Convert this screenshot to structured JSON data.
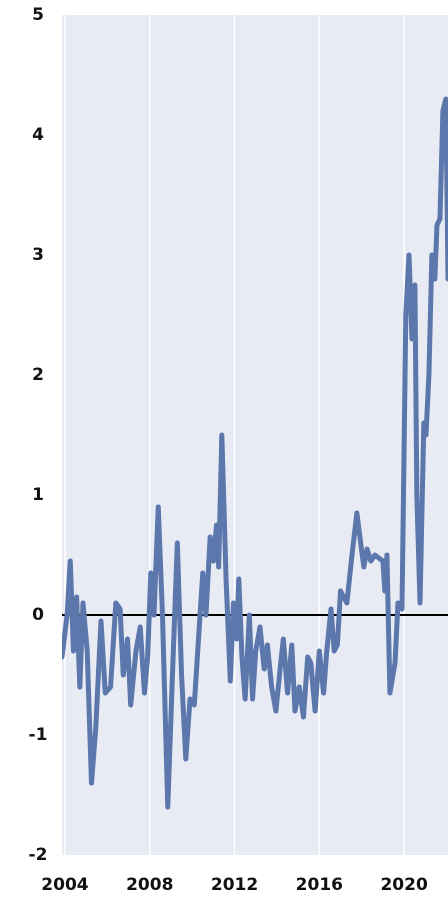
{
  "chart_data": {
    "type": "line",
    "x": [
      2003.86,
      2004.1,
      2004.25,
      2004.4,
      2004.55,
      2004.7,
      2004.85,
      2005.05,
      2005.25,
      2005.45,
      2005.7,
      2005.9,
      2006.15,
      2006.4,
      2006.6,
      2006.75,
      2006.95,
      2007.1,
      2007.35,
      2007.55,
      2007.75,
      2007.9,
      2008.05,
      2008.2,
      2008.4,
      2008.6,
      2008.85,
      2009.05,
      2009.3,
      2009.5,
      2009.7,
      2009.9,
      2010.1,
      2010.3,
      2010.5,
      2010.65,
      2010.85,
      2011.0,
      2011.15,
      2011.25,
      2011.4,
      2011.6,
      2011.8,
      2011.95,
      2012.1,
      2012.2,
      2012.35,
      2012.5,
      2012.7,
      2012.85,
      2013.0,
      2013.2,
      2013.4,
      2013.55,
      2013.75,
      2013.95,
      2014.15,
      2014.3,
      2014.5,
      2014.7,
      2014.85,
      2015.05,
      2015.25,
      2015.45,
      2015.6,
      2015.8,
      2016.0,
      2016.2,
      2016.35,
      2016.55,
      2016.7,
      2016.85,
      2017.0,
      2017.3,
      2017.54,
      2017.77,
      2017.95,
      2018.1,
      2018.25,
      2018.43,
      2018.62,
      2019.0,
      2019.09,
      2019.19,
      2019.33,
      2019.57,
      2019.71,
      2019.9,
      2020.08,
      2020.23,
      2020.37,
      2020.51,
      2020.6,
      2020.75,
      2020.93,
      2021.03,
      2021.17,
      2021.31,
      2021.45,
      2021.55,
      2021.69,
      2021.83,
      2021.97,
      2022.07
    ],
    "series": [
      {
        "color": "#5b77ab",
        "values": [
          -0.35,
          0.0,
          0.45,
          -0.3,
          0.15,
          -0.6,
          0.1,
          -0.3,
          -1.4,
          -0.95,
          -0.05,
          -0.65,
          -0.6,
          0.1,
          0.05,
          -0.5,
          -0.2,
          -0.75,
          -0.3,
          -0.1,
          -0.65,
          -0.35,
          0.35,
          0.0,
          0.9,
          0.0,
          -1.6,
          -0.6,
          0.6,
          -0.5,
          -1.2,
          -0.7,
          -0.75,
          -0.2,
          0.35,
          0.0,
          0.65,
          0.45,
          0.75,
          0.4,
          1.5,
          0.3,
          -0.55,
          0.1,
          -0.2,
          0.3,
          -0.35,
          -0.7,
          0.0,
          -0.7,
          -0.3,
          -0.1,
          -0.45,
          -0.25,
          -0.6,
          -0.8,
          -0.45,
          -0.2,
          -0.65,
          -0.25,
          -0.8,
          -0.6,
          -0.85,
          -0.35,
          -0.4,
          -0.8,
          -0.3,
          -0.65,
          -0.3,
          0.05,
          -0.3,
          -0.25,
          0.2,
          0.1,
          0.5,
          0.85,
          0.6,
          0.4,
          0.55,
          0.45,
          0.5,
          0.45,
          0.2,
          0.5,
          -0.65,
          -0.4,
          0.1,
          0.05,
          2.5,
          3.0,
          2.3,
          2.75,
          1.0,
          0.1,
          1.6,
          1.5,
          2.0,
          3.0,
          2.8,
          3.25,
          3.3,
          4.2,
          4.3,
          2.8
        ]
      }
    ],
    "xlim": [
      2003.86,
      2022.07
    ],
    "xticks": [
      2004,
      2008,
      2012,
      2016,
      2020
    ],
    "ylim": [
      -2,
      5
    ],
    "yticks": [
      -2,
      -1,
      0,
      1,
      2,
      3,
      4,
      5
    ],
    "grid": "x"
  }
}
